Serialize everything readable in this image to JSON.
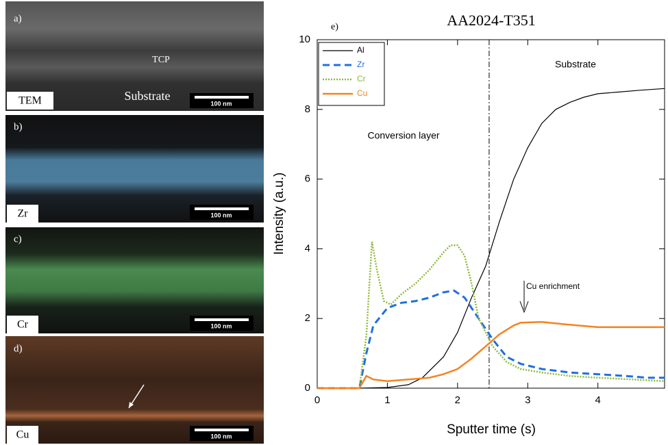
{
  "panels": [
    {
      "label": "a)",
      "element": "TEM",
      "scale": "100 nm",
      "annotations": [
        "TCP",
        "Substrate"
      ]
    },
    {
      "label": "b)",
      "element": "Zr",
      "scale": "100 nm"
    },
    {
      "label": "c)",
      "element": "Cr",
      "scale": "100 nm"
    },
    {
      "label": "d)",
      "element": "Cu",
      "scale": "100 nm"
    }
  ],
  "chart_data": {
    "type": "line",
    "panel_label": "e)",
    "title": "AA2024-T351",
    "x_label": "Sputter time (s)",
    "y_label": "Intensity (a.u.)",
    "xlim": [
      0,
      4.95
    ],
    "ylim": [
      0,
      10
    ],
    "xticks": [
      0,
      1,
      2,
      3,
      4
    ],
    "yticks": [
      0,
      2,
      4,
      6,
      8,
      10
    ],
    "boundary_x": 2.45,
    "annotations": [
      "Substrate",
      "Conversion layer",
      "Cu enrichment"
    ],
    "series": [
      {
        "name": "Al",
        "color": "#000000",
        "style": "solid",
        "x": [
          0,
          0.6,
          1.0,
          1.3,
          1.5,
          1.8,
          2.0,
          2.2,
          2.4,
          2.6,
          2.8,
          3.0,
          3.2,
          3.4,
          3.6,
          3.8,
          4.0,
          4.3,
          4.6,
          4.95
        ],
        "values": [
          0,
          0,
          0.02,
          0.1,
          0.3,
          0.9,
          1.6,
          2.6,
          3.5,
          4.8,
          6.0,
          6.9,
          7.6,
          8.0,
          8.2,
          8.35,
          8.45,
          8.5,
          8.55,
          8.6
        ]
      },
      {
        "name": "Zr",
        "color": "#1f6fe0",
        "style": "dashed",
        "x": [
          0,
          0.6,
          0.7,
          0.8,
          1.0,
          1.2,
          1.4,
          1.6,
          1.8,
          1.95,
          2.1,
          2.3,
          2.5,
          2.7,
          2.9,
          3.2,
          3.6,
          4.0,
          4.4,
          4.7,
          4.95
        ],
        "values": [
          0,
          0,
          1.0,
          1.8,
          2.3,
          2.45,
          2.5,
          2.6,
          2.75,
          2.8,
          2.6,
          2.0,
          1.4,
          0.9,
          0.7,
          0.55,
          0.45,
          0.4,
          0.35,
          0.3,
          0.3
        ]
      },
      {
        "name": "Cr",
        "color": "#8db836",
        "style": "dotted",
        "x": [
          0,
          0.6,
          0.7,
          0.78,
          0.85,
          0.95,
          1.05,
          1.2,
          1.4,
          1.6,
          1.8,
          1.9,
          2.0,
          2.1,
          2.2,
          2.3,
          2.5,
          2.7,
          2.9,
          3.2,
          3.6,
          4.0,
          4.5,
          4.95
        ],
        "values": [
          0,
          0,
          1.5,
          4.2,
          3.4,
          2.5,
          2.4,
          2.7,
          3.0,
          3.4,
          3.9,
          4.1,
          4.1,
          3.8,
          3.0,
          2.0,
          1.2,
          0.75,
          0.55,
          0.45,
          0.35,
          0.3,
          0.25,
          0.2
        ]
      },
      {
        "name": "Cu",
        "color": "#f58220",
        "style": "solid",
        "x": [
          0,
          0.6,
          0.7,
          0.8,
          1.0,
          1.3,
          1.6,
          1.8,
          2.0,
          2.2,
          2.4,
          2.6,
          2.8,
          2.9,
          3.2,
          3.6,
          4.0,
          4.5,
          4.95
        ],
        "values": [
          0,
          0,
          0.35,
          0.25,
          0.2,
          0.25,
          0.3,
          0.4,
          0.55,
          0.85,
          1.2,
          1.55,
          1.8,
          1.88,
          1.9,
          1.82,
          1.75,
          1.75,
          1.75
        ]
      }
    ]
  }
}
